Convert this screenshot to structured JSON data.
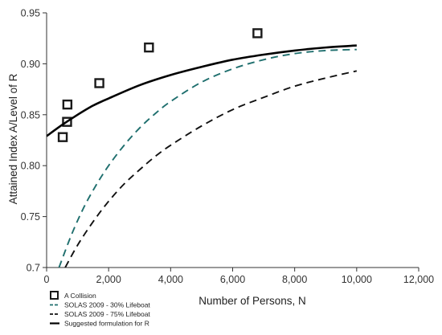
{
  "chart_data": {
    "type": "scatter",
    "title": "",
    "xlabel": "Number of Persons, N",
    "ylabel": "Attained Index A/Level of R",
    "xlim": [
      0,
      12000
    ],
    "ylim": [
      0.7,
      0.95
    ],
    "x_ticks": [
      0,
      2000,
      4000,
      6000,
      8000,
      10000,
      12000
    ],
    "x_tick_labels": [
      "0",
      "2,000",
      "4,000",
      "6,000",
      "8,000",
      "10,000",
      "12,000"
    ],
    "y_ticks": [
      0.7,
      0.75,
      0.8,
      0.85,
      0.9,
      0.95
    ],
    "y_tick_labels": [
      "0.7",
      "0.75",
      "0.80",
      "0.85",
      "0.90",
      "0.95"
    ],
    "grid": false,
    "legend_position": "bottom-left",
    "series": [
      {
        "name": "A Collision",
        "kind": "markers",
        "color": "#1a1a1a",
        "points": [
          {
            "x": 520,
            "y": 0.828
          },
          {
            "x": 660,
            "y": 0.843
          },
          {
            "x": 670,
            "y": 0.86
          },
          {
            "x": 1700,
            "y": 0.881
          },
          {
            "x": 3300,
            "y": 0.916
          },
          {
            "x": 6800,
            "y": 0.93
          }
        ]
      },
      {
        "name": "SOLAS 2009 - 30% Lifeboat",
        "kind": "line",
        "dash": "dashed",
        "color": "#1f6f6e",
        "points": [
          {
            "x": 400,
            "y": 0.7
          },
          {
            "x": 800,
            "y": 0.732
          },
          {
            "x": 1200,
            "y": 0.759
          },
          {
            "x": 1600,
            "y": 0.781
          },
          {
            "x": 2000,
            "y": 0.8
          },
          {
            "x": 2500,
            "y": 0.82
          },
          {
            "x": 3000,
            "y": 0.837
          },
          {
            "x": 3500,
            "y": 0.851
          },
          {
            "x": 4000,
            "y": 0.863
          },
          {
            "x": 5000,
            "y": 0.882
          },
          {
            "x": 6000,
            "y": 0.895
          },
          {
            "x": 7000,
            "y": 0.904
          },
          {
            "x": 8000,
            "y": 0.91
          },
          {
            "x": 9000,
            "y": 0.913
          },
          {
            "x": 10000,
            "y": 0.914
          }
        ]
      },
      {
        "name": "SOLAS 2009 - 75% Lifeboat",
        "kind": "line",
        "dash": "dashed",
        "color": "#111111",
        "points": [
          {
            "x": 600,
            "y": 0.7
          },
          {
            "x": 1000,
            "y": 0.722
          },
          {
            "x": 1500,
            "y": 0.745
          },
          {
            "x": 2000,
            "y": 0.765
          },
          {
            "x": 2500,
            "y": 0.782
          },
          {
            "x": 3000,
            "y": 0.796
          },
          {
            "x": 3500,
            "y": 0.809
          },
          {
            "x": 4000,
            "y": 0.82
          },
          {
            "x": 5000,
            "y": 0.839
          },
          {
            "x": 6000,
            "y": 0.855
          },
          {
            "x": 7000,
            "y": 0.867
          },
          {
            "x": 8000,
            "y": 0.878
          },
          {
            "x": 9000,
            "y": 0.886
          },
          {
            "x": 10000,
            "y": 0.893
          }
        ]
      },
      {
        "name": "Suggested formulation for R",
        "kind": "line",
        "dash": "solid",
        "color": "#000000",
        "points": [
          {
            "x": 0,
            "y": 0.829
          },
          {
            "x": 500,
            "y": 0.84
          },
          {
            "x": 1000,
            "y": 0.85
          },
          {
            "x": 1500,
            "y": 0.859
          },
          {
            "x": 2000,
            "y": 0.866
          },
          {
            "x": 3000,
            "y": 0.879
          },
          {
            "x": 4000,
            "y": 0.889
          },
          {
            "x": 5000,
            "y": 0.897
          },
          {
            "x": 6000,
            "y": 0.904
          },
          {
            "x": 7000,
            "y": 0.909
          },
          {
            "x": 8000,
            "y": 0.913
          },
          {
            "x": 9000,
            "y": 0.916
          },
          {
            "x": 10000,
            "y": 0.918
          }
        ]
      }
    ]
  }
}
